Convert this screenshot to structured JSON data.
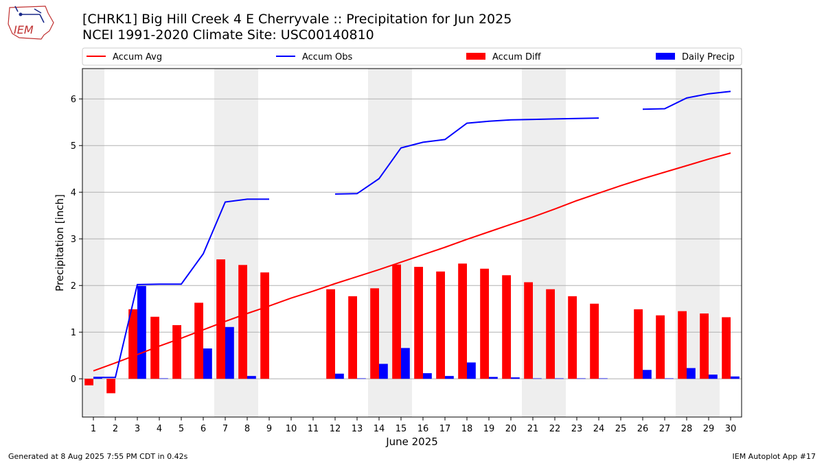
{
  "title": "[CHRK1] Big Hill Creek 4 E Cherryvale :: Precipitation for Jun 2025",
  "subtitle": "NCEI 1991-2020 Climate Site: USC00140810",
  "logo_text": "IEM",
  "footer_left": "Generated at 8 Aug 2025 7:55 PM CDT in 0.42s",
  "footer_right": "IEM Autoplot App #17",
  "colors": {
    "accum_avg": "#ff0000",
    "accum_obs": "#0000ff",
    "accum_diff": "#ff0000",
    "daily_precip": "#0000ff",
    "weekend_band": "#eeeeee",
    "grid": "#b0b0b0"
  },
  "chart_data": {
    "type": "bar",
    "xlabel": "June 2025",
    "ylabel": "Precipitation [inch]",
    "xlim": [
      0.5,
      30.5
    ],
    "ylim": [
      -0.82,
      6.65
    ],
    "yticks": [
      0,
      1,
      2,
      3,
      4,
      5,
      6
    ],
    "grid": "horizontal",
    "legend_position": "top",
    "weekend_days": [
      1,
      7,
      8,
      14,
      15,
      21,
      22,
      28,
      29
    ],
    "x": [
      1,
      2,
      3,
      4,
      5,
      6,
      7,
      8,
      9,
      10,
      11,
      12,
      13,
      14,
      15,
      16,
      17,
      18,
      19,
      20,
      21,
      22,
      23,
      24,
      25,
      26,
      27,
      28,
      29,
      30
    ],
    "series": [
      {
        "name": "Accum Avg",
        "type": "line",
        "values": [
          0.17,
          0.34,
          0.52,
          0.7,
          0.87,
          1.05,
          1.23,
          1.4,
          1.56,
          1.73,
          1.88,
          2.04,
          2.19,
          2.34,
          2.5,
          2.66,
          2.82,
          2.99,
          3.15,
          3.31,
          3.47,
          3.64,
          3.82,
          3.98,
          4.14,
          4.29,
          4.43,
          4.57,
          4.71,
          4.84
        ]
      },
      {
        "name": "Accum Obs",
        "type": "line",
        "values": [
          0.03,
          0.03,
          2.02,
          2.03,
          2.03,
          2.68,
          3.79,
          3.85,
          3.85,
          null,
          null,
          3.96,
          3.97,
          4.29,
          4.95,
          5.07,
          5.13,
          5.48,
          5.52,
          5.55,
          5.56,
          5.57,
          5.58,
          5.59,
          null,
          5.78,
          5.79,
          6.02,
          6.11,
          6.16
        ]
      },
      {
        "name": "Accum Diff",
        "type": "bar",
        "values": [
          -0.14,
          -0.31,
          1.49,
          1.33,
          1.15,
          1.63,
          2.56,
          2.44,
          2.28,
          null,
          null,
          1.92,
          1.77,
          1.94,
          2.45,
          2.4,
          2.3,
          2.47,
          2.36,
          2.22,
          2.07,
          1.92,
          1.77,
          1.61,
          null,
          1.49,
          1.36,
          1.45,
          1.4,
          1.32
        ]
      },
      {
        "name": "Daily Precip",
        "type": "bar",
        "values": [
          0.03,
          0.0,
          1.99,
          0.01,
          0.0,
          0.65,
          1.11,
          0.06,
          0.0,
          0.0,
          0.0,
          0.11,
          0.01,
          0.32,
          0.66,
          0.12,
          0.06,
          0.35,
          0.04,
          0.03,
          0.01,
          0.01,
          0.01,
          0.01,
          0.0,
          0.19,
          0.01,
          0.23,
          0.09,
          0.05
        ]
      }
    ]
  }
}
